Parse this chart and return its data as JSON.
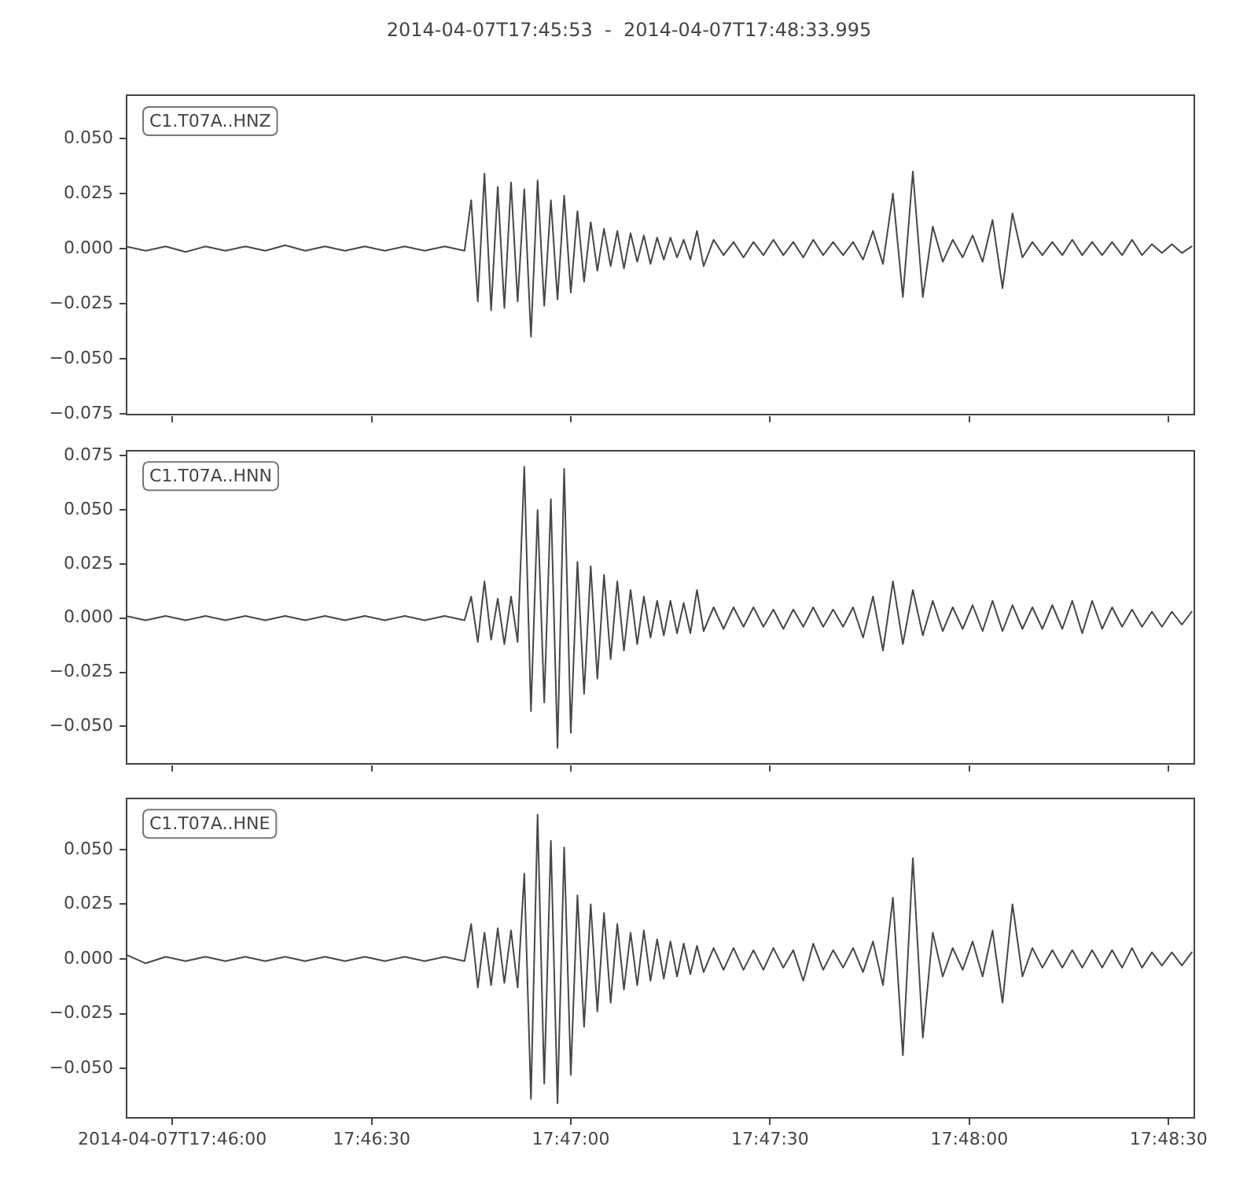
{
  "chart_data": [
    {
      "type": "line",
      "title": "2014-04-07T17:45:53  -  2014-04-07T17:48:33.995",
      "annotations": [
        "C1.T07A..HNZ"
      ],
      "color": "#474747",
      "x": [
        "2014-04-07T17:45:53",
        "2014-04-07T17:45:56",
        "2014-04-07T17:45:59",
        "2014-04-07T17:46:02",
        "2014-04-07T17:46:05",
        "2014-04-07T17:46:08",
        "2014-04-07T17:46:11",
        "2014-04-07T17:46:14",
        "2014-04-07T17:46:17",
        "2014-04-07T17:46:20",
        "2014-04-07T17:46:23",
        "2014-04-07T17:46:26",
        "2014-04-07T17:46:29",
        "2014-04-07T17:46:32",
        "2014-04-07T17:46:35",
        "2014-04-07T17:46:38",
        "2014-04-07T17:46:41",
        "2014-04-07T17:46:44",
        "2014-04-07T17:46:45",
        "2014-04-07T17:46:46",
        "2014-04-07T17:46:47",
        "2014-04-07T17:46:48",
        "2014-04-07T17:46:49",
        "2014-04-07T17:46:50",
        "2014-04-07T17:46:51",
        "2014-04-07T17:46:52",
        "2014-04-07T17:46:53",
        "2014-04-07T17:46:54",
        "2014-04-07T17:46:55",
        "2014-04-07T17:46:56",
        "2014-04-07T17:46:57",
        "2014-04-07T17:46:58",
        "2014-04-07T17:46:59",
        "2014-04-07T17:47:00",
        "2014-04-07T17:47:01",
        "2014-04-07T17:47:02",
        "2014-04-07T17:47:03",
        "2014-04-07T17:47:04",
        "2014-04-07T17:47:05",
        "2014-04-07T17:47:06",
        "2014-04-07T17:47:07",
        "2014-04-07T17:47:08",
        "2014-04-07T17:47:09",
        "2014-04-07T17:47:10",
        "2014-04-07T17:47:11",
        "2014-04-07T17:47:12",
        "2014-04-07T17:47:13",
        "2014-04-07T17:47:14",
        "2014-04-07T17:47:15",
        "2014-04-07T17:47:16",
        "2014-04-07T17:47:17",
        "2014-04-07T17:47:18",
        "2014-04-07T17:47:19",
        "2014-04-07T17:47:20",
        "2014-04-07T17:47:21.5",
        "2014-04-07T17:47:23",
        "2014-04-07T17:47:24.5",
        "2014-04-07T17:47:26",
        "2014-04-07T17:47:27.5",
        "2014-04-07T17:47:29",
        "2014-04-07T17:47:30.5",
        "2014-04-07T17:47:32",
        "2014-04-07T17:47:33.5",
        "2014-04-07T17:47:35",
        "2014-04-07T17:47:36.5",
        "2014-04-07T17:47:38",
        "2014-04-07T17:47:39.5",
        "2014-04-07T17:47:41",
        "2014-04-07T17:47:42.5",
        "2014-04-07T17:47:44",
        "2014-04-07T17:47:45.5",
        "2014-04-07T17:47:47",
        "2014-04-07T17:47:48.5",
        "2014-04-07T17:47:50",
        "2014-04-07T17:47:51.5",
        "2014-04-07T17:47:53",
        "2014-04-07T17:47:54.5",
        "2014-04-07T17:47:56",
        "2014-04-07T17:47:57.5",
        "2014-04-07T17:47:59",
        "2014-04-07T17:48:00.5",
        "2014-04-07T17:48:02",
        "2014-04-07T17:48:03.5",
        "2014-04-07T17:48:05",
        "2014-04-07T17:48:06.5",
        "2014-04-07T17:48:08",
        "2014-04-07T17:48:09.5",
        "2014-04-07T17:48:11",
        "2014-04-07T17:48:12.5",
        "2014-04-07T17:48:14",
        "2014-04-07T17:48:15.5",
        "2014-04-07T17:48:17",
        "2014-04-07T17:48:18.5",
        "2014-04-07T17:48:20",
        "2014-04-07T17:48:21.5",
        "2014-04-07T17:48:23",
        "2014-04-07T17:48:24.5",
        "2014-04-07T17:48:26",
        "2014-04-07T17:48:27.5",
        "2014-04-07T17:48:29",
        "2014-04-07T17:48:30.5",
        "2014-04-07T17:48:32",
        "2014-04-07T17:48:33.5"
      ],
      "values": [
        0.001,
        -0.001,
        0.001,
        -0.0015,
        0.001,
        -0.001,
        0.001,
        -0.001,
        0.0015,
        -0.001,
        0.001,
        -0.001,
        0.001,
        -0.001,
        0.001,
        -0.001,
        0.001,
        -0.001,
        0.022,
        -0.024,
        0.034,
        -0.028,
        0.028,
        -0.027,
        0.03,
        -0.024,
        0.027,
        -0.04,
        0.031,
        -0.026,
        0.022,
        -0.023,
        0.024,
        -0.02,
        0.017,
        -0.015,
        0.012,
        -0.01,
        0.009,
        -0.008,
        0.008,
        -0.009,
        0.007,
        -0.006,
        0.006,
        -0.007,
        0.005,
        -0.005,
        0.005,
        -0.004,
        0.004,
        -0.005,
        0.008,
        -0.008,
        0.004,
        -0.003,
        0.003,
        -0.004,
        0.003,
        -0.003,
        0.004,
        -0.003,
        0.003,
        -0.004,
        0.004,
        -0.003,
        0.003,
        -0.003,
        0.003,
        -0.005,
        0.008,
        -0.007,
        0.025,
        -0.022,
        0.035,
        -0.022,
        0.01,
        -0.006,
        0.004,
        -0.004,
        0.006,
        -0.006,
        0.013,
        -0.018,
        0.016,
        -0.004,
        0.003,
        -0.003,
        0.003,
        -0.003,
        0.004,
        -0.003,
        0.003,
        -0.003,
        0.003,
        -0.003,
        0.004,
        -0.003,
        0.002,
        -0.002,
        0.002,
        -0.002,
        0.001
      ],
      "xlim": [
        "2014-04-07T17:45:53",
        "2014-04-07T17:48:33.995"
      ],
      "xticks": [
        {
          "value": "2014-04-07T17:46:00",
          "label": null
        },
        {
          "value": "2014-04-07T17:46:30",
          "label": null
        },
        {
          "value": "2014-04-07T17:47:00",
          "label": null
        },
        {
          "value": "2014-04-07T17:47:30",
          "label": null
        },
        {
          "value": "2014-04-07T17:48:00",
          "label": null
        },
        {
          "value": "2014-04-07T17:48:30",
          "label": null
        }
      ],
      "ylim": [
        -0.076,
        0.07
      ],
      "yticks": [
        {
          "value": -0.075,
          "label": "−0.075"
        },
        {
          "value": -0.05,
          "label": "−0.050"
        },
        {
          "value": -0.025,
          "label": "−0.025"
        },
        {
          "value": 0,
          "label": "0.000"
        },
        {
          "value": 0.025,
          "label": "0.025"
        },
        {
          "value": 0.05,
          "label": "0.050"
        }
      ],
      "tick_labels": "y"
    },
    {
      "type": "line",
      "annotations": [
        "C1.T07A..HNN"
      ],
      "color": "#474747",
      "x": [
        "2014-04-07T17:45:53",
        "2014-04-07T17:45:56",
        "2014-04-07T17:45:59",
        "2014-04-07T17:46:02",
        "2014-04-07T17:46:05",
        "2014-04-07T17:46:08",
        "2014-04-07T17:46:11",
        "2014-04-07T17:46:14",
        "2014-04-07T17:46:17",
        "2014-04-07T17:46:20",
        "2014-04-07T17:46:23",
        "2014-04-07T17:46:26",
        "2014-04-07T17:46:29",
        "2014-04-07T17:46:32",
        "2014-04-07T17:46:35",
        "2014-04-07T17:46:38",
        "2014-04-07T17:46:41",
        "2014-04-07T17:46:44",
        "2014-04-07T17:46:45",
        "2014-04-07T17:46:46",
        "2014-04-07T17:46:47",
        "2014-04-07T17:46:48",
        "2014-04-07T17:46:49",
        "2014-04-07T17:46:50",
        "2014-04-07T17:46:51",
        "2014-04-07T17:46:52",
        "2014-04-07T17:46:53",
        "2014-04-07T17:46:54",
        "2014-04-07T17:46:55",
        "2014-04-07T17:46:56",
        "2014-04-07T17:46:57",
        "2014-04-07T17:46:58",
        "2014-04-07T17:46:59",
        "2014-04-07T17:47:00",
        "2014-04-07T17:47:01",
        "2014-04-07T17:47:02",
        "2014-04-07T17:47:03",
        "2014-04-07T17:47:04",
        "2014-04-07T17:47:05",
        "2014-04-07T17:47:06",
        "2014-04-07T17:47:07",
        "2014-04-07T17:47:08",
        "2014-04-07T17:47:09",
        "2014-04-07T17:47:10",
        "2014-04-07T17:47:11",
        "2014-04-07T17:47:12",
        "2014-04-07T17:47:13",
        "2014-04-07T17:47:14",
        "2014-04-07T17:47:15",
        "2014-04-07T17:47:16",
        "2014-04-07T17:47:17",
        "2014-04-07T17:47:18",
        "2014-04-07T17:47:19",
        "2014-04-07T17:47:20",
        "2014-04-07T17:47:21.5",
        "2014-04-07T17:47:23",
        "2014-04-07T17:47:24.5",
        "2014-04-07T17:47:26",
        "2014-04-07T17:47:27.5",
        "2014-04-07T17:47:29",
        "2014-04-07T17:47:30.5",
        "2014-04-07T17:47:32",
        "2014-04-07T17:47:33.5",
        "2014-04-07T17:47:35",
        "2014-04-07T17:47:36.5",
        "2014-04-07T17:47:38",
        "2014-04-07T17:47:39.5",
        "2014-04-07T17:47:41",
        "2014-04-07T17:47:42.5",
        "2014-04-07T17:47:44",
        "2014-04-07T17:47:45.5",
        "2014-04-07T17:47:47",
        "2014-04-07T17:47:48.5",
        "2014-04-07T17:47:50",
        "2014-04-07T17:47:51.5",
        "2014-04-07T17:47:53",
        "2014-04-07T17:47:54.5",
        "2014-04-07T17:47:56",
        "2014-04-07T17:47:57.5",
        "2014-04-07T17:47:59",
        "2014-04-07T17:48:00.5",
        "2014-04-07T17:48:02",
        "2014-04-07T17:48:03.5",
        "2014-04-07T17:48:05",
        "2014-04-07T17:48:06.5",
        "2014-04-07T17:48:08",
        "2014-04-07T17:48:09.5",
        "2014-04-07T17:48:11",
        "2014-04-07T17:48:12.5",
        "2014-04-07T17:48:14",
        "2014-04-07T17:48:15.5",
        "2014-04-07T17:48:17",
        "2014-04-07T17:48:18.5",
        "2014-04-07T17:48:20",
        "2014-04-07T17:48:21.5",
        "2014-04-07T17:48:23",
        "2014-04-07T17:48:24.5",
        "2014-04-07T17:48:26",
        "2014-04-07T17:48:27.5",
        "2014-04-07T17:48:29",
        "2014-04-07T17:48:30.5",
        "2014-04-07T17:48:32",
        "2014-04-07T17:48:33.5"
      ],
      "values": [
        0.001,
        -0.001,
        0.001,
        -0.001,
        0.001,
        -0.001,
        0.001,
        -0.001,
        0.001,
        -0.001,
        0.001,
        -0.001,
        0.001,
        -0.001,
        0.001,
        -0.001,
        0.001,
        -0.001,
        0.01,
        -0.011,
        0.017,
        -0.01,
        0.009,
        -0.012,
        0.01,
        -0.011,
        0.07,
        -0.043,
        0.05,
        -0.039,
        0.055,
        -0.06,
        0.069,
        -0.053,
        0.026,
        -0.035,
        0.024,
        -0.028,
        0.02,
        -0.019,
        0.017,
        -0.015,
        0.013,
        -0.012,
        0.01,
        -0.009,
        0.008,
        -0.008,
        0.008,
        -0.007,
        0.007,
        -0.007,
        0.013,
        -0.006,
        0.005,
        -0.005,
        0.005,
        -0.004,
        0.005,
        -0.004,
        0.004,
        -0.005,
        0.004,
        -0.004,
        0.005,
        -0.004,
        0.004,
        -0.004,
        0.005,
        -0.009,
        0.01,
        -0.015,
        0.017,
        -0.012,
        0.013,
        -0.008,
        0.008,
        -0.006,
        0.005,
        -0.005,
        0.006,
        -0.006,
        0.008,
        -0.006,
        0.006,
        -0.005,
        0.005,
        -0.005,
        0.006,
        -0.005,
        0.008,
        -0.007,
        0.008,
        -0.005,
        0.005,
        -0.004,
        0.004,
        -0.004,
        0.003,
        -0.004,
        0.003,
        -0.003,
        0.003
      ],
      "xlim": [
        "2014-04-07T17:45:53",
        "2014-04-07T17:48:33.995"
      ],
      "xticks": [
        {
          "value": "2014-04-07T17:46:00",
          "label": null
        },
        {
          "value": "2014-04-07T17:46:30",
          "label": null
        },
        {
          "value": "2014-04-07T17:47:00",
          "label": null
        },
        {
          "value": "2014-04-07T17:47:30",
          "label": null
        },
        {
          "value": "2014-04-07T17:48:00",
          "label": null
        },
        {
          "value": "2014-04-07T17:48:30",
          "label": null
        }
      ],
      "ylim": [
        -0.068,
        0.078
      ],
      "yticks": [
        {
          "value": -0.05,
          "label": "−0.050"
        },
        {
          "value": -0.025,
          "label": "−0.025"
        },
        {
          "value": 0,
          "label": "0.000"
        },
        {
          "value": 0.025,
          "label": "0.025"
        },
        {
          "value": 0.05,
          "label": "0.050"
        },
        {
          "value": 0.075,
          "label": "0.075"
        }
      ],
      "tick_labels": "y"
    },
    {
      "type": "line",
      "annotations": [
        "C1.T07A..HNE"
      ],
      "color": "#474747",
      "x": [
        "2014-04-07T17:45:53",
        "2014-04-07T17:45:56",
        "2014-04-07T17:45:59",
        "2014-04-07T17:46:02",
        "2014-04-07T17:46:05",
        "2014-04-07T17:46:08",
        "2014-04-07T17:46:11",
        "2014-04-07T17:46:14",
        "2014-04-07T17:46:17",
        "2014-04-07T17:46:20",
        "2014-04-07T17:46:23",
        "2014-04-07T17:46:26",
        "2014-04-07T17:46:29",
        "2014-04-07T17:46:32",
        "2014-04-07T17:46:35",
        "2014-04-07T17:46:38",
        "2014-04-07T17:46:41",
        "2014-04-07T17:46:44",
        "2014-04-07T17:46:45",
        "2014-04-07T17:46:46",
        "2014-04-07T17:46:47",
        "2014-04-07T17:46:48",
        "2014-04-07T17:46:49",
        "2014-04-07T17:46:50",
        "2014-04-07T17:46:51",
        "2014-04-07T17:46:52",
        "2014-04-07T17:46:53",
        "2014-04-07T17:46:54",
        "2014-04-07T17:46:55",
        "2014-04-07T17:46:56",
        "2014-04-07T17:46:57",
        "2014-04-07T17:46:58",
        "2014-04-07T17:46:59",
        "2014-04-07T17:47:00",
        "2014-04-07T17:47:01",
        "2014-04-07T17:47:02",
        "2014-04-07T17:47:03",
        "2014-04-07T17:47:04",
        "2014-04-07T17:47:05",
        "2014-04-07T17:47:06",
        "2014-04-07T17:47:07",
        "2014-04-07T17:47:08",
        "2014-04-07T17:47:09",
        "2014-04-07T17:47:10",
        "2014-04-07T17:47:11",
        "2014-04-07T17:47:12",
        "2014-04-07T17:47:13",
        "2014-04-07T17:47:14",
        "2014-04-07T17:47:15",
        "2014-04-07T17:47:16",
        "2014-04-07T17:47:17",
        "2014-04-07T17:47:18",
        "2014-04-07T17:47:19",
        "2014-04-07T17:47:20",
        "2014-04-07T17:47:21.5",
        "2014-04-07T17:47:23",
        "2014-04-07T17:47:24.5",
        "2014-04-07T17:47:26",
        "2014-04-07T17:47:27.5",
        "2014-04-07T17:47:29",
        "2014-04-07T17:47:30.5",
        "2014-04-07T17:47:32",
        "2014-04-07T17:47:33.5",
        "2014-04-07T17:47:35",
        "2014-04-07T17:47:36.5",
        "2014-04-07T17:47:38",
        "2014-04-07T17:47:39.5",
        "2014-04-07T17:47:41",
        "2014-04-07T17:47:42.5",
        "2014-04-07T17:47:44",
        "2014-04-07T17:47:45.5",
        "2014-04-07T17:47:47",
        "2014-04-07T17:47:48.5",
        "2014-04-07T17:47:50",
        "2014-04-07T17:47:51.5",
        "2014-04-07T17:47:53",
        "2014-04-07T17:47:54.5",
        "2014-04-07T17:47:56",
        "2014-04-07T17:47:57.5",
        "2014-04-07T17:47:59",
        "2014-04-07T17:48:00.5",
        "2014-04-07T17:48:02",
        "2014-04-07T17:48:03.5",
        "2014-04-07T17:48:05",
        "2014-04-07T17:48:06.5",
        "2014-04-07T17:48:08",
        "2014-04-07T17:48:09.5",
        "2014-04-07T17:48:11",
        "2014-04-07T17:48:12.5",
        "2014-04-07T17:48:14",
        "2014-04-07T17:48:15.5",
        "2014-04-07T17:48:17",
        "2014-04-07T17:48:18.5",
        "2014-04-07T17:48:20",
        "2014-04-07T17:48:21.5",
        "2014-04-07T17:48:23",
        "2014-04-07T17:48:24.5",
        "2014-04-07T17:48:26",
        "2014-04-07T17:48:27.5",
        "2014-04-07T17:48:29",
        "2014-04-07T17:48:30.5",
        "2014-04-07T17:48:32",
        "2014-04-07T17:48:33.5"
      ],
      "values": [
        0.002,
        -0.002,
        0.001,
        -0.001,
        0.001,
        -0.001,
        0.001,
        -0.001,
        0.001,
        -0.001,
        0.001,
        -0.001,
        0.001,
        -0.001,
        0.001,
        -0.001,
        0.001,
        -0.001,
        0.016,
        -0.013,
        0.012,
        -0.012,
        0.014,
        -0.011,
        0.013,
        -0.013,
        0.039,
        -0.064,
        0.066,
        -0.057,
        0.054,
        -0.066,
        0.051,
        -0.053,
        0.029,
        -0.031,
        0.025,
        -0.024,
        0.021,
        -0.02,
        0.016,
        -0.014,
        0.012,
        -0.012,
        0.013,
        -0.01,
        0.009,
        -0.009,
        0.008,
        -0.008,
        0.007,
        -0.007,
        0.006,
        -0.006,
        0.005,
        -0.005,
        0.005,
        -0.005,
        0.004,
        -0.005,
        0.005,
        -0.004,
        0.004,
        -0.01,
        0.007,
        -0.005,
        0.004,
        -0.004,
        0.005,
        -0.006,
        0.008,
        -0.012,
        0.028,
        -0.044,
        0.046,
        -0.036,
        0.012,
        -0.008,
        0.005,
        -0.005,
        0.008,
        -0.008,
        0.013,
        -0.02,
        0.025,
        -0.008,
        0.005,
        -0.004,
        0.004,
        -0.004,
        0.004,
        -0.004,
        0.004,
        -0.004,
        0.004,
        -0.004,
        0.005,
        -0.004,
        0.003,
        -0.003,
        0.003,
        -0.003,
        0.003
      ],
      "xlim": [
        "2014-04-07T17:45:53",
        "2014-04-07T17:48:33.995"
      ],
      "xticks": [
        "2014-04-07T17:46:00",
        {
          "value": "2014-04-07T17:46:30",
          "label": "17:46:30"
        },
        {
          "value": "2014-04-07T17:47:00",
          "label": "17:47:00"
        },
        {
          "value": "2014-04-07T17:47:30",
          "label": "17:47:30"
        },
        {
          "value": "2014-04-07T17:48:00",
          "label": "17:48:00"
        },
        {
          "value": "2014-04-07T17:48:30",
          "label": "17:48:30"
        }
      ],
      "ylim": [
        -0.073,
        0.074
      ],
      "yticks": [
        {
          "value": -0.05,
          "label": "−0.050"
        },
        {
          "value": -0.025,
          "label": "−0.025"
        },
        {
          "value": 0,
          "label": "0.000"
        },
        {
          "value": 0.025,
          "label": "0.025"
        },
        {
          "value": 0.05,
          "label": "0.050"
        }
      ]
    }
  ]
}
